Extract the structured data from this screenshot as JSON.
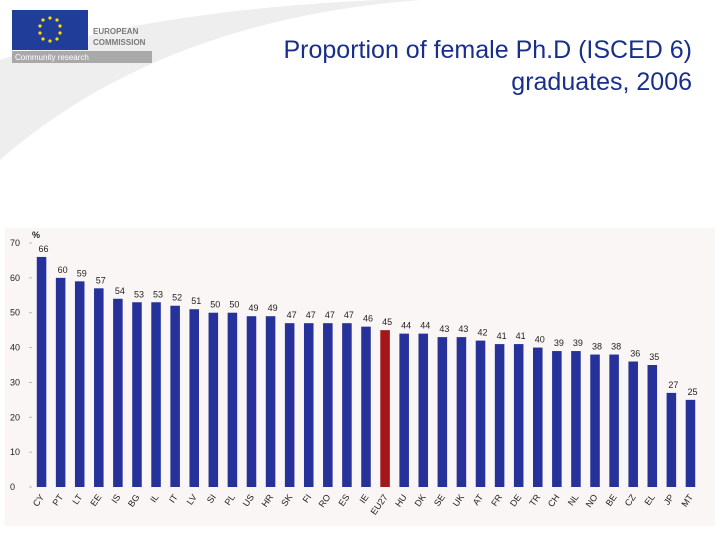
{
  "logo": {
    "line1": "EUROPEAN",
    "line2": "COMMISSION",
    "tagline": "Community research"
  },
  "chart_data": {
    "type": "bar",
    "title": "Proportion of female Ph.D (ISCED 6) graduates, 2006",
    "y_label": "%",
    "categories": [
      "CY",
      "PT",
      "LT",
      "EE",
      "IS",
      "BG",
      "IL",
      "IT",
      "LV",
      "SI",
      "PL",
      "US",
      "HR",
      "SK",
      "FI",
      "RO",
      "ES",
      "IE",
      "EU27",
      "HU",
      "DK",
      "SE",
      "UK",
      "AT",
      "FR",
      "DE",
      "TR",
      "CH",
      "NL",
      "NO",
      "BE",
      "CZ",
      "EL",
      "JP",
      "MT"
    ],
    "values": [
      66,
      60,
      59,
      57,
      54,
      53,
      53,
      52,
      51,
      50,
      50,
      49,
      49,
      47,
      47,
      47,
      47,
      46,
      45,
      44,
      44,
      43,
      43,
      42,
      41,
      41,
      40,
      39,
      39,
      38,
      38,
      36,
      35,
      27,
      25
    ],
    "color": "#26329a",
    "highlight": {
      "category": "EU27",
      "color": "#a3171c"
    },
    "ylim": [
      0,
      70
    ],
    "yticks": [
      0,
      10,
      20,
      30,
      40,
      50,
      60,
      70
    ],
    "grid": false
  }
}
